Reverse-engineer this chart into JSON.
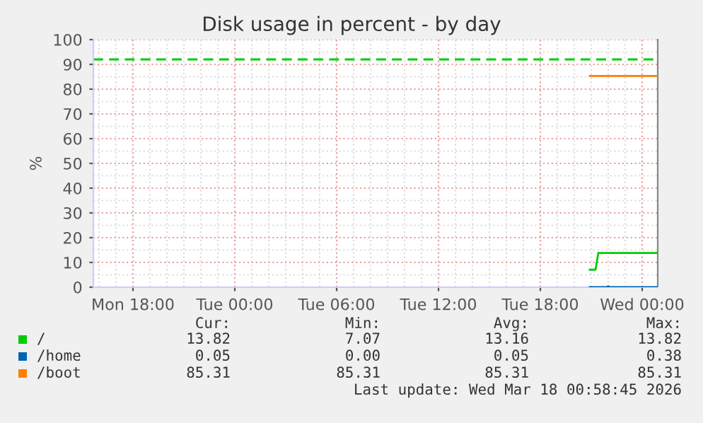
{
  "chart_data": {
    "type": "line",
    "title": "Disk usage in percent - by day",
    "ylabel": "%",
    "xlim": [
      "2026-03-16T15:40",
      "2026-03-18T00:55"
    ],
    "xticks": [
      {
        "value": "2026-03-16T18:00",
        "label": "Mon 18:00"
      },
      {
        "value": "2026-03-17T00:00",
        "label": "Tue 00:00"
      },
      {
        "value": "2026-03-17T06:00",
        "label": "Tue 06:00"
      },
      {
        "value": "2026-03-17T12:00",
        "label": "Tue 12:00"
      },
      {
        "value": "2026-03-17T18:00",
        "label": "Tue 18:00"
      },
      {
        "value": "2026-03-18T00:00",
        "label": "Wed 00:00"
      }
    ],
    "ylim": [
      0,
      100
    ],
    "yticks": [
      0,
      10,
      20,
      30,
      40,
      50,
      60,
      70,
      80,
      90,
      100
    ],
    "grid": true,
    "legend": "bottom",
    "series": [
      {
        "name": "/",
        "color": "#00cc00",
        "x": [
          "2026-03-17T20:55",
          "2026-03-17T21:15",
          "2026-03-17T21:25",
          "2026-03-18T00:55"
        ],
        "values": [
          7.07,
          7.07,
          13.82,
          13.82
        ]
      },
      {
        "name": "/home",
        "color": "#0066b3",
        "x": [
          "2026-03-17T20:55",
          "2026-03-17T21:55",
          "2026-03-17T22:00",
          "2026-03-17T22:05",
          "2026-03-18T00:55"
        ],
        "values": [
          0,
          0,
          0.38,
          0,
          0
        ]
      },
      {
        "name": "/boot",
        "color": "#ff8000",
        "x": [
          "2026-03-17T20:55",
          "2026-03-18T00:55"
        ],
        "values": [
          85.31,
          85.31
        ]
      }
    ],
    "ref_lines": [
      {
        "axis": "y",
        "value": 92,
        "color": "#00cc00",
        "line_style": "dashed"
      }
    ],
    "annotations": [
      "Cur:",
      "Min:",
      "Avg:",
      "Max:",
      "13.82",
      "7.07",
      "13.16",
      "13.82",
      "0.05",
      "0.00",
      "0.05",
      "0.38",
      "85.31",
      "85.31",
      "85.31",
      "85.31",
      "Last update: Wed Mar 18 00:58:45 2026"
    ]
  }
}
